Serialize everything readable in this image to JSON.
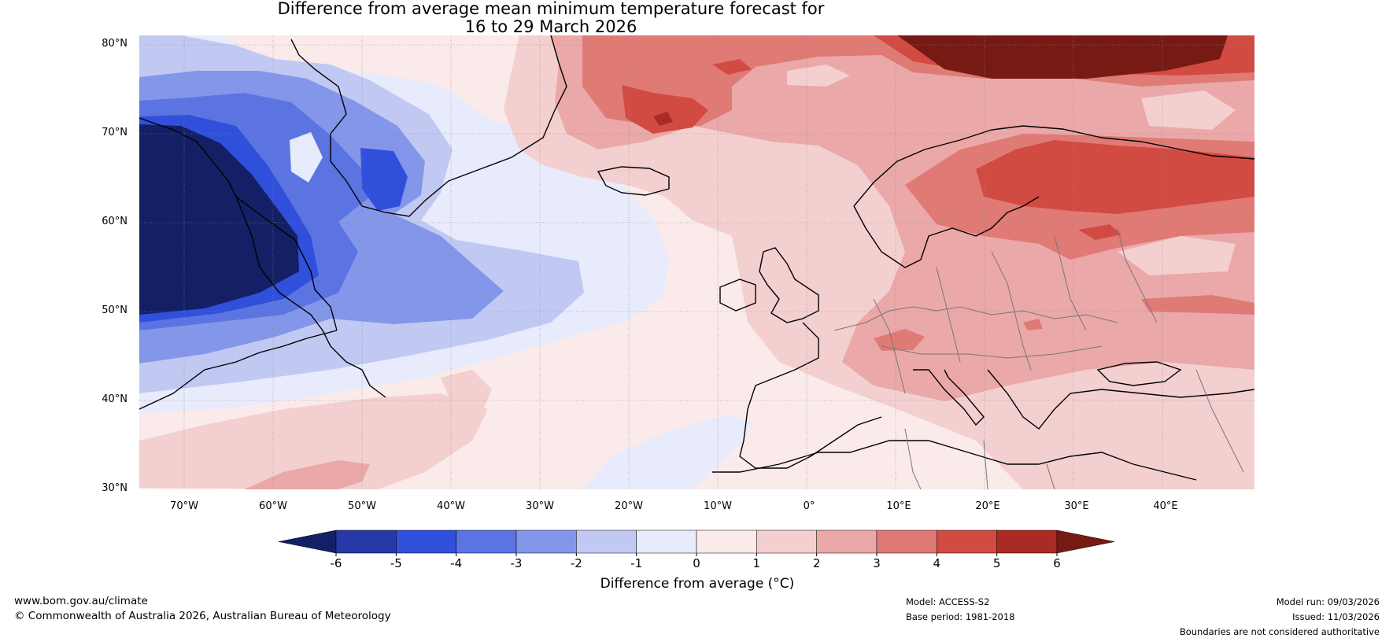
{
  "title": {
    "line1": "Difference from average mean minimum temperature forecast for",
    "line2": "16 to 29 March 2026"
  },
  "axes": {
    "lat_labels": [
      "80°N",
      "70°N",
      "60°N",
      "50°N",
      "40°N",
      "30°N"
    ],
    "lon_labels": [
      "70°W",
      "60°W",
      "50°W",
      "40°W",
      "30°W",
      "20°W",
      "10°W",
      "0°",
      "10°E",
      "20°E",
      "30°E",
      "40°E"
    ]
  },
  "colorbar": {
    "label": "Difference from average (°C)",
    "ticks": [
      "-6",
      "-5",
      "-4",
      "-3",
      "-2",
      "-1",
      "0",
      "1",
      "2",
      "3",
      "4",
      "5",
      "6"
    ],
    "colors": {
      "below": "#142065",
      "bins": [
        "#2739a6",
        "#3050dc",
        "#5b74e2",
        "#8496e9",
        "#c1c9f3",
        "#e8ebfb",
        "#fbeaea",
        "#f4cfcf",
        "#eaa8a8",
        "#e07a75",
        "#d24b42",
        "#aa2a24"
      ],
      "above": "#781a14"
    }
  },
  "footer": {
    "website": "www.bom.gov.au/climate",
    "copyright": "© Commonwealth of Australia 2026, Australian Bureau of Meteorology",
    "model": "Model: ACCESS-S2",
    "base_period": "Base period: 1981-2018",
    "model_run": "Model run: 09/03/2026",
    "issued": "Issued: 11/03/2026",
    "disclaimer": "Boundaries are not considered authoritative"
  }
}
